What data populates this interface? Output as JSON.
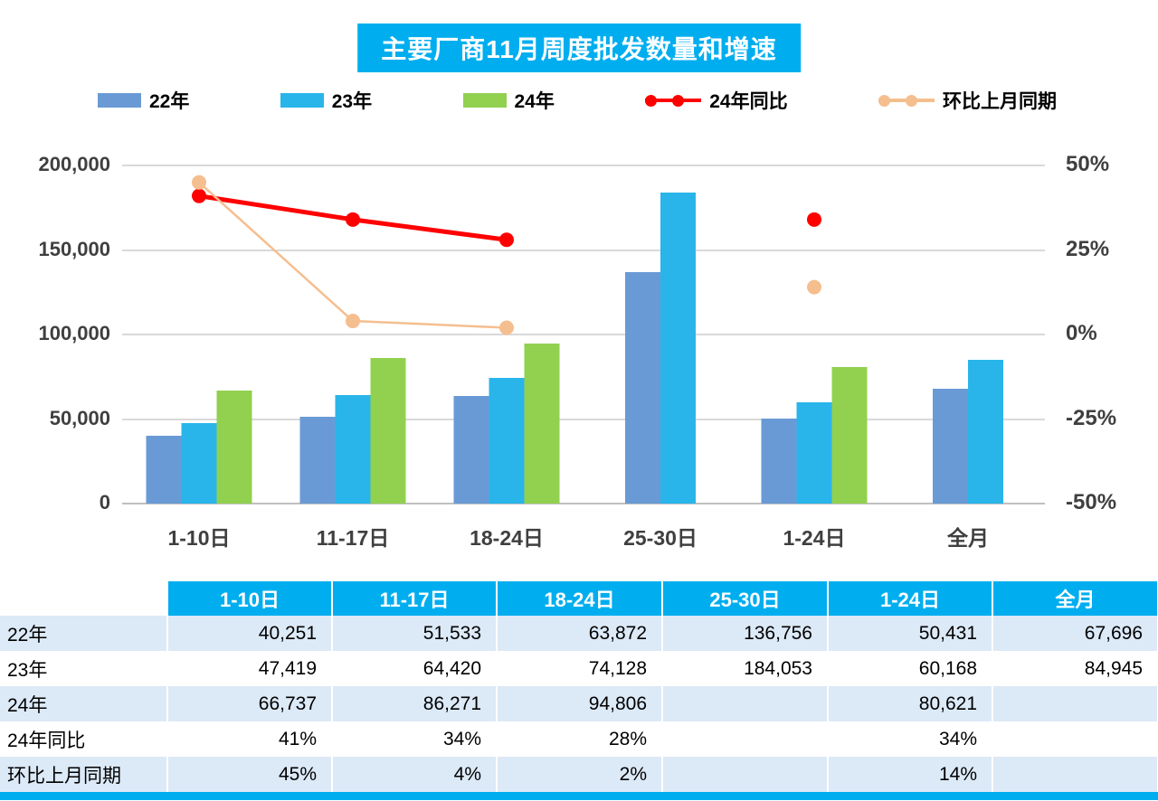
{
  "title": "主要厂商11月周度批发数量和增速",
  "colors": {
    "cyan": "#00AEEF",
    "bar_22": "#6A9AD6",
    "bar_23": "#29B5EA",
    "bar_24": "#92D050",
    "line_yoy": "#FF0000",
    "line_mom": "#F5BE8F",
    "row_alt": "#DCE9F7",
    "gridline": "#D9D9D9",
    "axis_text": "#3F3F3F"
  },
  "legend": [
    {
      "label": "22年",
      "type": "bar",
      "color_key": "bar_22"
    },
    {
      "label": "23年",
      "type": "bar",
      "color_key": "bar_23"
    },
    {
      "label": "24年",
      "type": "bar",
      "color_key": "bar_24"
    },
    {
      "label": "24年同比",
      "type": "line",
      "color_key": "line_yoy"
    },
    {
      "label": "环比上月同期",
      "type": "line",
      "color_key": "line_mom"
    }
  ],
  "chart_data": {
    "type": "bar",
    "title": "主要厂商11月周度批发数量和增速",
    "categories": [
      "1-10日",
      "11-17日",
      "18-24日",
      "25-30日",
      "1-24日",
      "全月"
    ],
    "bar_series": [
      {
        "name": "22年",
        "color_key": "bar_22",
        "values": [
          40251,
          51533,
          63872,
          136756,
          50431,
          67696
        ]
      },
      {
        "name": "23年",
        "color_key": "bar_23",
        "values": [
          47419,
          64420,
          74128,
          184053,
          60168,
          84945
        ]
      },
      {
        "name": "24年",
        "color_key": "bar_24",
        "values": [
          66737,
          86271,
          94806,
          null,
          80621,
          null
        ]
      }
    ],
    "line_series": [
      {
        "name": "24年同比",
        "color_key": "line_yoy",
        "values": [
          41,
          34,
          28,
          null,
          34,
          null
        ]
      },
      {
        "name": "环比上月同期",
        "color_key": "line_mom",
        "values": [
          45,
          4,
          2,
          null,
          14,
          null
        ]
      }
    ],
    "left_axis": {
      "min": 0,
      "max": 200000,
      "ticks": [
        "200,000",
        "150,000",
        "100,000",
        "50,000",
        "0"
      ]
    },
    "right_axis": {
      "min": -50,
      "max": 50,
      "ticks": [
        "50%",
        "25%",
        "0%",
        "-25%",
        "-50%"
      ]
    },
    "grid": true,
    "legend_position": "top"
  },
  "table": {
    "header": [
      "1-10日",
      "11-17日",
      "18-24日",
      "25-30日",
      "1-24日",
      "全月"
    ],
    "rows": [
      {
        "label": "22年",
        "cells": [
          "40,251",
          "51,533",
          "63,872",
          "136,756",
          "50,431",
          "67,696"
        ]
      },
      {
        "label": "23年",
        "cells": [
          "47,419",
          "64,420",
          "74,128",
          "184,053",
          "60,168",
          "84,945"
        ]
      },
      {
        "label": "24年",
        "cells": [
          "66,737",
          "86,271",
          "94,806",
          "",
          "80,621",
          ""
        ]
      },
      {
        "label": "24年同比",
        "cells": [
          "41%",
          "34%",
          "28%",
          "",
          "34%",
          ""
        ]
      },
      {
        "label": "环比上月同期",
        "cells": [
          "45%",
          "4%",
          "2%",
          "",
          "14%",
          ""
        ]
      }
    ]
  }
}
